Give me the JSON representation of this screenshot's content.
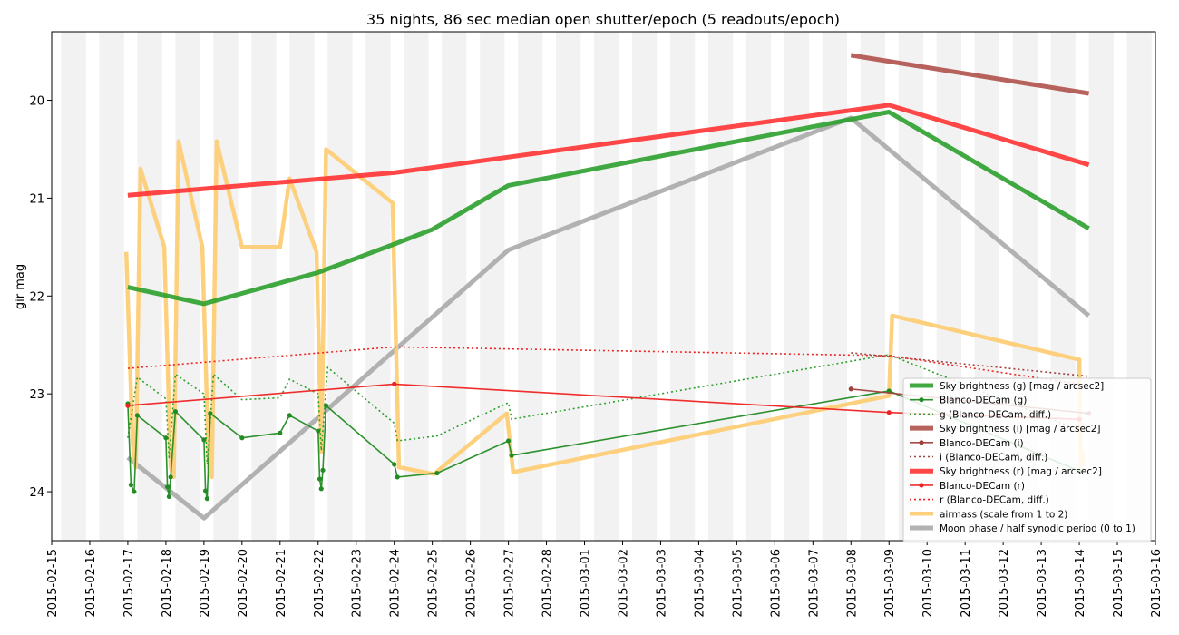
{
  "chart_data": {
    "type": "line",
    "title": "35 nights, 86 sec median open shutter/epoch (5 readouts/epoch)",
    "xlabel": "",
    "ylabel": "gir mag",
    "x_range": [
      "2015-02-15",
      "2015-03-16"
    ],
    "y_range": [
      24.5,
      19.3
    ],
    "y_inverted": true,
    "y_ticks": [
      20,
      21,
      22,
      23,
      24
    ],
    "x_ticks": [
      "2015-02-15",
      "2015-02-16",
      "2015-02-17",
      "2015-02-18",
      "2015-02-19",
      "2015-02-20",
      "2015-02-21",
      "2015-02-22",
      "2015-02-23",
      "2015-02-24",
      "2015-02-25",
      "2015-02-26",
      "2015-02-27",
      "2015-02-28",
      "2015-03-01",
      "2015-03-02",
      "2015-03-03",
      "2015-03-04",
      "2015-03-05",
      "2015-03-06",
      "2015-03-07",
      "2015-03-08",
      "2015-03-09",
      "2015-03-10",
      "2015-03-11",
      "2015-03-12",
      "2015-03-13",
      "2015-03-14",
      "2015-03-15",
      "2015-03-16"
    ],
    "grid": false,
    "night_bands": true,
    "legend_position": "lower-right",
    "series": [
      {
        "name": "Sky brightness (g) [mag / arcsec2]",
        "color": "#2ca02c",
        "style": "thick",
        "x": [
          "2015-02-17T00:00",
          "2015-02-19T00:00",
          "2015-02-22T00:00",
          "2015-02-24T00:00",
          "2015-02-25T00:00",
          "2015-02-27T00:00",
          "2015-03-09T00:00",
          "2015-03-14T06:00"
        ],
        "y": [
          21.91,
          22.08,
          21.76,
          21.47,
          21.32,
          20.87,
          20.12,
          21.31
        ]
      },
      {
        "name": "Blanco-DECam (g)",
        "color": "#228b22",
        "style": "thin-marker",
        "x": [
          "2015-02-17T00:00",
          "2015-02-17T02:00",
          "2015-02-17T04:00",
          "2015-02-17T06:00",
          "2015-02-18T00:00",
          "2015-02-18T01:00",
          "2015-02-18T02:00",
          "2015-02-18T03:00",
          "2015-02-18T06:00",
          "2015-02-19T00:00",
          "2015-02-19T01:00",
          "2015-02-19T02:00",
          "2015-02-19T04:00",
          "2015-02-20T00:00",
          "2015-02-21T00:00",
          "2015-02-21T06:00",
          "2015-02-22T00:00",
          "2015-02-22T01:00",
          "2015-02-22T02:00",
          "2015-02-22T03:00",
          "2015-02-22T05:00",
          "2015-02-24T00:00",
          "2015-02-24T02:00",
          "2015-02-25T03:00",
          "2015-02-27T00:00",
          "2015-02-27T02:00",
          "2015-03-09T00:00",
          "2015-03-14T00:00"
        ],
        "y": [
          23.1,
          23.93,
          24.0,
          23.22,
          23.45,
          23.95,
          24.05,
          23.85,
          23.18,
          23.47,
          23.99,
          24.07,
          23.2,
          23.45,
          23.4,
          23.22,
          23.38,
          23.87,
          23.97,
          23.78,
          23.12,
          23.72,
          23.85,
          23.81,
          23.48,
          23.63,
          22.97,
          23.79
        ]
      },
      {
        "name": "g (Blanco-DECam, diff.)",
        "color": "#2ca02c",
        "style": "dotted",
        "x": [
          "2015-02-17T00:00",
          "2015-02-17T06:00",
          "2015-02-18T00:00",
          "2015-02-18T02:00",
          "2015-02-18T06:00",
          "2015-02-19T00:00",
          "2015-02-19T02:00",
          "2015-02-19T06:00",
          "2015-02-20T00:00",
          "2015-02-21T00:00",
          "2015-02-21T06:00",
          "2015-02-22T00:00",
          "2015-02-22T02:00",
          "2015-02-22T06:00",
          "2015-02-24T00:00",
          "2015-02-24T02:00",
          "2015-02-25T03:00",
          "2015-02-27T00:00",
          "2015-02-27T02:00",
          "2015-03-09T00:00",
          "2015-03-14T00:00"
        ],
        "y": [
          23.45,
          22.83,
          23.05,
          23.65,
          22.8,
          23.0,
          23.72,
          22.8,
          23.06,
          23.04,
          22.85,
          23.0,
          23.58,
          22.73,
          23.3,
          23.48,
          23.43,
          23.09,
          23.26,
          22.6,
          23.37
        ]
      },
      {
        "name": "Sky brightness (i) [mag / arcsec2]",
        "color": "#b0514d",
        "style": "thick",
        "x": [
          "2015-03-08T00:00",
          "2015-03-14T06:00"
        ],
        "y": [
          19.54,
          19.93
        ]
      },
      {
        "name": "Blanco-DECam (i)",
        "color": "#a0413d",
        "style": "thin-marker",
        "x": [
          "2015-03-08T00:00",
          "2015-03-14T06:00"
        ],
        "y": [
          22.95,
          23.2
        ]
      },
      {
        "name": "i (Blanco-DECam, diff.)",
        "color": "#a0413d",
        "style": "dotted",
        "x": [
          "2015-03-08T00:00",
          "2015-03-14T06:00"
        ],
        "y": [
          22.58,
          22.82
        ]
      },
      {
        "name": "Sky brightness (r) [mag / arcsec2]",
        "color": "#ff3333",
        "style": "thick",
        "x": [
          "2015-02-17T00:00",
          "2015-02-24T00:00",
          "2015-03-09T00:00",
          "2015-03-14T06:00"
        ],
        "y": [
          20.97,
          20.74,
          20.05,
          20.66
        ]
      },
      {
        "name": "Blanco-DECam (r)",
        "color": "#ee2222",
        "style": "thin-marker",
        "x": [
          "2015-02-17T00:00",
          "2015-02-24T00:00",
          "2015-03-09T00:00",
          "2015-03-14T00:00"
        ],
        "y": [
          23.12,
          22.9,
          23.19,
          23.26
        ]
      },
      {
        "name": "r (Blanco-DECam, diff.)",
        "color": "#ee2222",
        "style": "dotted",
        "x": [
          "2015-02-17T00:00",
          "2015-02-24T00:00",
          "2015-03-09T00:00",
          "2015-03-14T00:00"
        ],
        "y": [
          22.74,
          22.52,
          22.61,
          22.9
        ]
      },
      {
        "name": "airmass (scale from 1 to 2)",
        "color": "#fdcd77",
        "style": "thick-airmass",
        "x": [
          "2015-02-16T23:00",
          "2015-02-17T03:00",
          "2015-02-17T05:00",
          "2015-02-17T08:00",
          "2015-02-17T23:00",
          "2015-02-18T03:00",
          "2015-02-18T05:00",
          "2015-02-18T08:00",
          "2015-02-18T23:00",
          "2015-02-19T03:00",
          "2015-02-19T05:00",
          "2015-02-19T08:00",
          "2015-02-20T00:00",
          "2015-02-21T00:00",
          "2015-02-21T06:00",
          "2015-02-21T23:00",
          "2015-02-22T02:00",
          "2015-02-22T05:00",
          "2015-02-23T23:00",
          "2015-02-24T03:00",
          "2015-02-25T01:00",
          "2015-02-26T23:00",
          "2015-02-27T03:00",
          "2015-03-09T00:00",
          "2015-03-09T02:00",
          "2015-03-14T00:00",
          "2015-03-14T01:00",
          "2015-03-14T03:00"
        ],
        "y": [
          21.55,
          23.5,
          23.75,
          20.7,
          21.5,
          23.75,
          23.85,
          20.42,
          21.5,
          23.75,
          23.85,
          20.42,
          21.5,
          21.5,
          20.8,
          21.55,
          23.6,
          20.5,
          21.05,
          23.75,
          23.82,
          23.2,
          23.8,
          23.02,
          22.2,
          22.65,
          23.8,
          23.6
        ]
      },
      {
        "name": "Moon phase / half synodic period (0 to 1)",
        "color": "#aaaaaa",
        "style": "thick",
        "x": [
          "2015-02-17T00:00",
          "2015-02-19T00:00",
          "2015-02-27T00:00",
          "2015-03-08T00:00",
          "2015-03-14T06:00"
        ],
        "y": [
          23.65,
          24.27,
          21.53,
          20.18,
          22.2
        ]
      }
    ]
  }
}
